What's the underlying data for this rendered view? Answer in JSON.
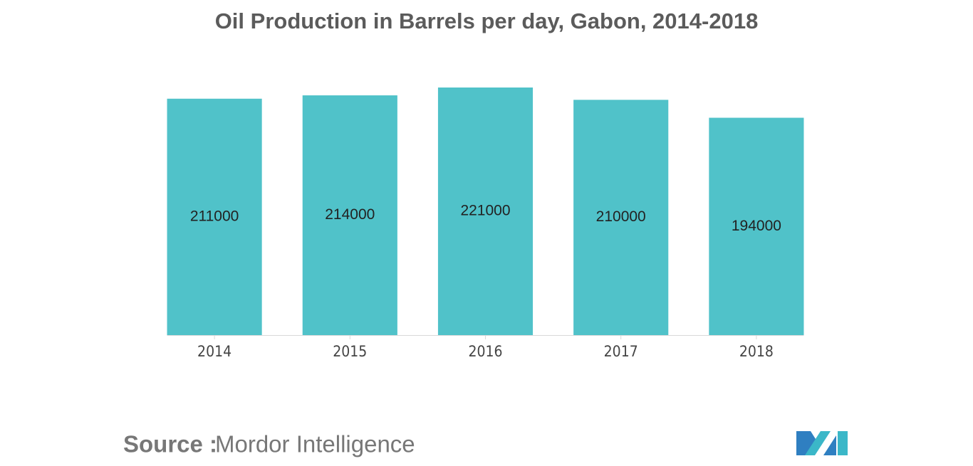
{
  "chart_data": {
    "type": "bar",
    "title": "Oil Production in Barrels per day, Gabon, 2014-2018",
    "categories": [
      "2014",
      "2015",
      "2016",
      "2017",
      "2018"
    ],
    "values": [
      211000,
      214000,
      221000,
      210000,
      194000
    ],
    "color": "#50c2c9"
  },
  "source": {
    "label": "Source :",
    "text": "Mordor Intelligence"
  }
}
